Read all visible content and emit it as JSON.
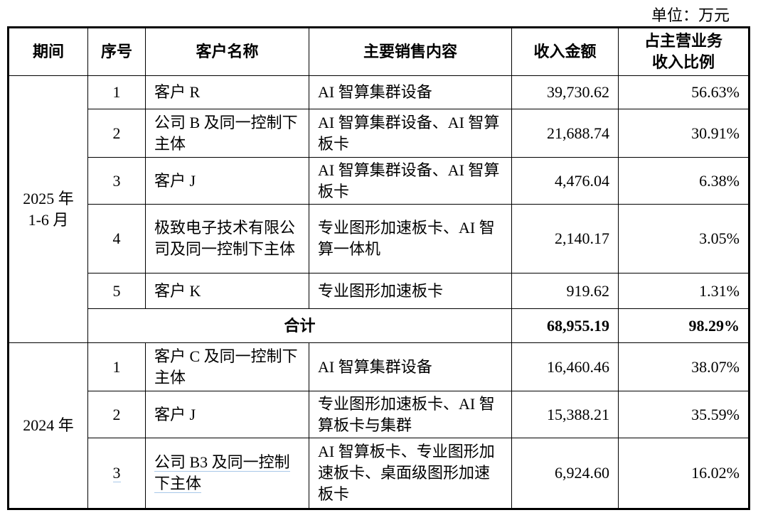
{
  "unit_label": "单位：万元",
  "headers": [
    "期间",
    "序号",
    "客户名称",
    "主要销售内容",
    "收入金额",
    "占主营业务收入比例"
  ],
  "periods": [
    {
      "label": "2025 年 1-6 月",
      "rows": [
        {
          "no": "1",
          "customer": "客户 R",
          "content": "AI 智算集群设备",
          "amount": "39,730.62",
          "ratio": "56.63%"
        },
        {
          "no": "2",
          "customer": "公司 B 及同一控制下主体",
          "content": "AI 智算集群设备、AI 智算板卡",
          "amount": "21,688.74",
          "ratio": "30.91%"
        },
        {
          "no": "3",
          "customer": "客户 J",
          "content": "AI 智算集群设备、AI 智算板卡",
          "amount": "4,476.04",
          "ratio": "6.38%"
        },
        {
          "no": "4",
          "customer": "极致电子技术有限公司及同一控制下主体",
          "content": "专业图形加速板卡、AI 智算一体机",
          "amount": "2,140.17",
          "ratio": "3.05%"
        },
        {
          "no": "5",
          "customer": "客户 K",
          "content": "专业图形加速板卡",
          "amount": "919.62",
          "ratio": "1.31%"
        }
      ],
      "total": {
        "label": "合计",
        "amount": "68,955.19",
        "ratio": "98.29%"
      }
    },
    {
      "label": "2024 年",
      "rows": [
        {
          "no": "1",
          "customer": "客户 C 及同一控制下主体",
          "content": "AI 智算集群设备",
          "amount": "16,460.46",
          "ratio": "38.07%"
        },
        {
          "no": "2",
          "customer": "客户 J",
          "content": "专业图形加速板卡、AI 智算板卡与集群",
          "amount": "15,388.21",
          "ratio": "35.59%"
        },
        {
          "no": "3",
          "customer": "公司 B3 及同一控制下主体",
          "content": "AI 智算板卡、专业图形加速板卡、桌面级图形加速板卡",
          "amount": "6,924.60",
          "ratio": "16.02%"
        }
      ]
    }
  ]
}
